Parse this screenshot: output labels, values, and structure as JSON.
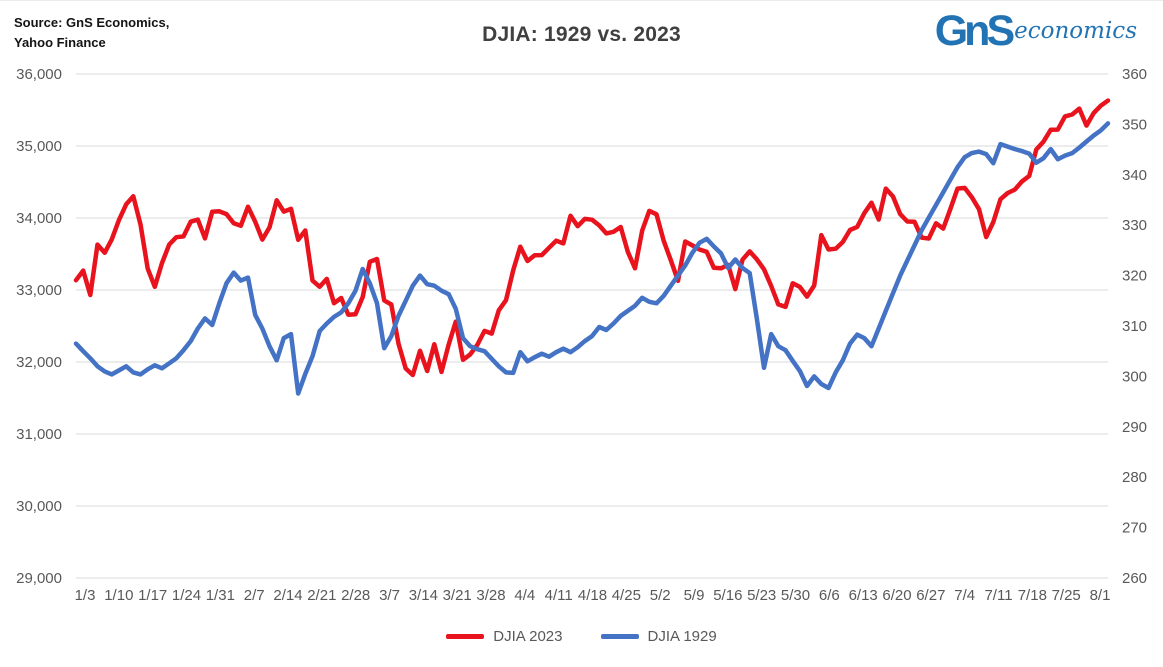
{
  "header": {
    "source_line1": "Source: GnS Economics,",
    "source_line2": "Yahoo Finance",
    "logo": {
      "monogram": "GnS",
      "wordmark": "economics",
      "color": "#2173b4"
    }
  },
  "chart_data": {
    "type": "line",
    "title": "DJIA: 1929 vs. 2023",
    "grid": true,
    "legend_position": "bottom",
    "background": "#ffffff",
    "gridline_color": "#d9d9d9",
    "axis_text_color": "#595959",
    "x_tick_labels": [
      "1/3",
      "1/10",
      "1/17",
      "1/24",
      "1/31",
      "2/7",
      "2/14",
      "2/21",
      "2/28",
      "3/7",
      "3/14",
      "3/21",
      "3/28",
      "4/4",
      "4/11",
      "4/18",
      "4/25",
      "5/2",
      "5/9",
      "5/16",
      "5/23",
      "5/30",
      "6/6",
      "6/13",
      "6/20",
      "6/27",
      "7/4",
      "7/11",
      "7/18",
      "7/25",
      "8/1"
    ],
    "left_axis": {
      "min": 29000,
      "max": 36000,
      "tick_step": 1000,
      "tick_labels": [
        "29,000",
        "30,000",
        "31,000",
        "32,000",
        "33,000",
        "34,000",
        "35,000",
        "36,000"
      ]
    },
    "right_axis": {
      "min": 260,
      "max": 360,
      "tick_step": 10,
      "tick_labels": [
        "260",
        "270",
        "280",
        "290",
        "300",
        "310",
        "320",
        "330",
        "340",
        "350",
        "360"
      ]
    },
    "series": [
      {
        "name": "DJIA 2023",
        "axis": "left",
        "color": "#e8131d",
        "values": [
          33136,
          33270,
          32930,
          33631,
          33517,
          33704,
          33973,
          34190,
          34302,
          33911,
          33297,
          33045,
          33375,
          33630,
          33734,
          33744,
          33949,
          33978,
          33717,
          34086,
          34093,
          34054,
          33926,
          33891,
          34157,
          33949,
          33700,
          33869,
          34246,
          34089,
          34128,
          33697,
          33827,
          33130,
          33045,
          33154,
          32817,
          32889,
          32657,
          32662,
          32903,
          33391,
          33431,
          32856,
          32798,
          32255,
          31910,
          31819,
          32155,
          31875,
          32247,
          31862,
          32245,
          32561,
          32030,
          32105,
          32238,
          32432,
          32394,
          32718,
          32859,
          33274,
          33601,
          33403,
          33483,
          33485,
          33586,
          33685,
          33647,
          34030,
          33886,
          33987,
          33977,
          33897,
          33786,
          33809,
          33875,
          33531,
          33302,
          33826,
          34098,
          34052,
          33684,
          33414,
          33128,
          33674,
          33619,
          33562,
          33531,
          33310,
          33301,
          33349,
          33012,
          33421,
          33536,
          33427,
          33287,
          33056,
          32800,
          32765,
          33093,
          33043,
          32908,
          33062,
          33763,
          33562,
          33573,
          33666,
          33833,
          33877,
          34066,
          34212,
          33979,
          34408,
          34299,
          34054,
          33952,
          33947,
          33727,
          33715,
          33926,
          33853,
          34122,
          34408,
          34418,
          34289,
          34122,
          33735,
          33944,
          34261,
          34347,
          34395,
          34509,
          34585,
          34952,
          35061,
          35225,
          35228,
          35411,
          35438,
          35520,
          35283,
          35459,
          35560,
          35630
        ]
      },
      {
        "name": "DJIA 1929",
        "axis": "right",
        "color": "#4472c4",
        "values": [
          306.5,
          305.0,
          303.6,
          302.0,
          301.0,
          300.4,
          301.2,
          302.0,
          300.8,
          300.4,
          301.4,
          302.2,
          301.6,
          302.6,
          303.6,
          305.2,
          307.0,
          309.5,
          311.5,
          310.2,
          314.5,
          318.5,
          320.6,
          319.0,
          319.6,
          312.2,
          309.5,
          306.0,
          303.2,
          307.6,
          308.4,
          296.6,
          300.5,
          304.0,
          309.0,
          310.5,
          311.8,
          312.7,
          314.5,
          317.0,
          321.3,
          318.5,
          314.5,
          305.6,
          308.0,
          312.0,
          315.0,
          318.0,
          320.0,
          318.3,
          318.0,
          317.0,
          316.3,
          313.4,
          307.6,
          306.0,
          305.4,
          305.0,
          303.5,
          302.0,
          300.8,
          300.7,
          304.8,
          303.0,
          303.8,
          304.5,
          303.9,
          304.8,
          305.5,
          304.8,
          305.8,
          307.0,
          308.0,
          309.8,
          309.2,
          310.5,
          312.0,
          313.0,
          314.0,
          315.6,
          314.8,
          314.5,
          316.0,
          318.0,
          320.0,
          322.0,
          324.5,
          326.5,
          327.3,
          325.8,
          324.4,
          321.5,
          323.2,
          321.5,
          320.5,
          311.5,
          301.7,
          308.4,
          306.0,
          305.2,
          303.1,
          301.1,
          298.1,
          300.0,
          298.5,
          297.7,
          300.8,
          303.2,
          306.5,
          308.3,
          307.6,
          306.0,
          309.5,
          313.0,
          316.5,
          320.0,
          323.0,
          326.0,
          329.0,
          331.5,
          334.0,
          336.5,
          339.0,
          341.5,
          343.5,
          344.3,
          344.6,
          344.1,
          342.3,
          346.1,
          345.6,
          345.1,
          344.7,
          344.2,
          342.4,
          343.3,
          345.1,
          343.1,
          343.8,
          344.3,
          345.4,
          346.6,
          347.8,
          348.8,
          350.2
        ]
      }
    ]
  }
}
